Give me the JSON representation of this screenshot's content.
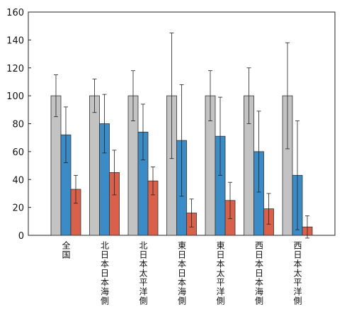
{
  "chart_data": {
    "type": "bar",
    "categories": [
      "全国",
      "北日本日本海側",
      "北日本太平洋側",
      "東日本日本海側",
      "東日本太平洋側",
      "西日本日本海側",
      "西日本太平洋側"
    ],
    "series": [
      {
        "color": "#c3c3c3",
        "values": [
          100,
          100,
          100,
          100,
          100,
          100,
          100
        ],
        "errors": [
          15,
          12,
          18,
          45,
          18,
          20,
          38
        ]
      },
      {
        "color": "#3b8bc6",
        "values": [
          72,
          80,
          74,
          68,
          71,
          60,
          43
        ],
        "errors": [
          20,
          21,
          20,
          40,
          28,
          29,
          39
        ]
      },
      {
        "color": "#d9604a",
        "values": [
          33,
          45,
          39,
          16,
          25,
          19,
          6
        ],
        "errors": [
          10,
          16,
          10,
          10,
          13,
          11,
          8
        ]
      }
    ],
    "ylim": [
      0,
      160
    ],
    "yticks": [
      0,
      20,
      40,
      60,
      80,
      100,
      120,
      140,
      160
    ]
  }
}
